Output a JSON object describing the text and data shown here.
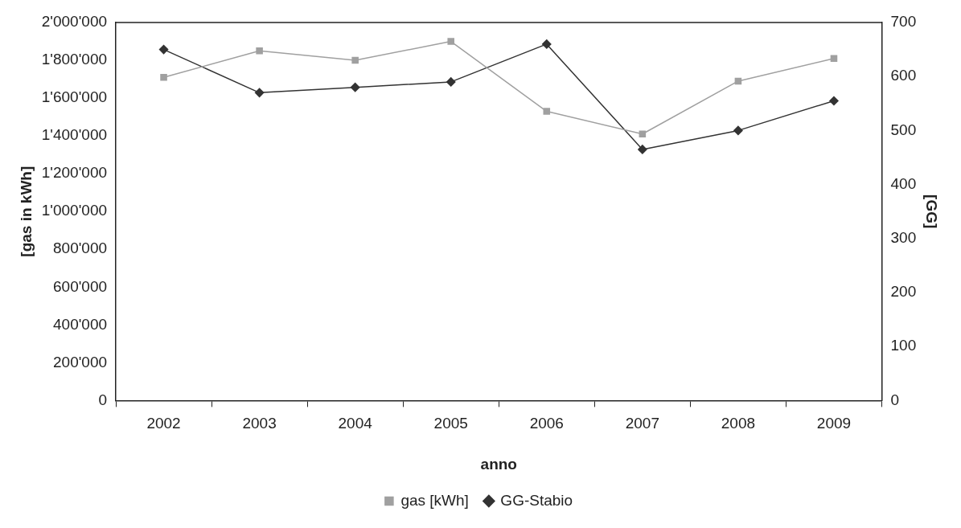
{
  "chart_data": {
    "type": "line",
    "xlabel": "anno",
    "ylabel": "[gas in kWh]",
    "y2label": "[GG]",
    "categories": [
      "2002",
      "2003",
      "2004",
      "2005",
      "2006",
      "2007",
      "2008",
      "2009"
    ],
    "series": [
      {
        "name": "gas [kWh]",
        "color": "#a0a0a0",
        "marker": "square",
        "values": [
          1710000,
          1850000,
          1800000,
          1900000,
          1530000,
          1410000,
          1690000,
          1810000
        ]
      },
      {
        "name": "GG-Stabio",
        "color": "#333333",
        "marker": "diamond",
        "axis": "y2",
        "values": [
          650,
          570,
          580,
          590,
          660,
          465,
          500,
          555
        ]
      }
    ],
    "ylim": [
      0,
      2000000
    ],
    "yticks": [
      {
        "value": 0,
        "label": "0"
      },
      {
        "value": 200000,
        "label": "200'000"
      },
      {
        "value": 400000,
        "label": "400'000"
      },
      {
        "value": 600000,
        "label": "600'000"
      },
      {
        "value": 800000,
        "label": "800'000"
      },
      {
        "value": 1000000,
        "label": "1'000'000"
      },
      {
        "value": 1200000,
        "label": "1'200'000"
      },
      {
        "value": 1400000,
        "label": "1'400'000"
      },
      {
        "value": 1600000,
        "label": "1'600'000"
      },
      {
        "value": 1800000,
        "label": "1'800'000"
      },
      {
        "value": 2000000,
        "label": "2'000'000"
      }
    ],
    "y2lim": [
      0,
      700
    ],
    "y2ticks": [
      0,
      100,
      200,
      300,
      400,
      500,
      600,
      700
    ],
    "grid": false,
    "legend": "bottom",
    "line_style": "solid"
  }
}
